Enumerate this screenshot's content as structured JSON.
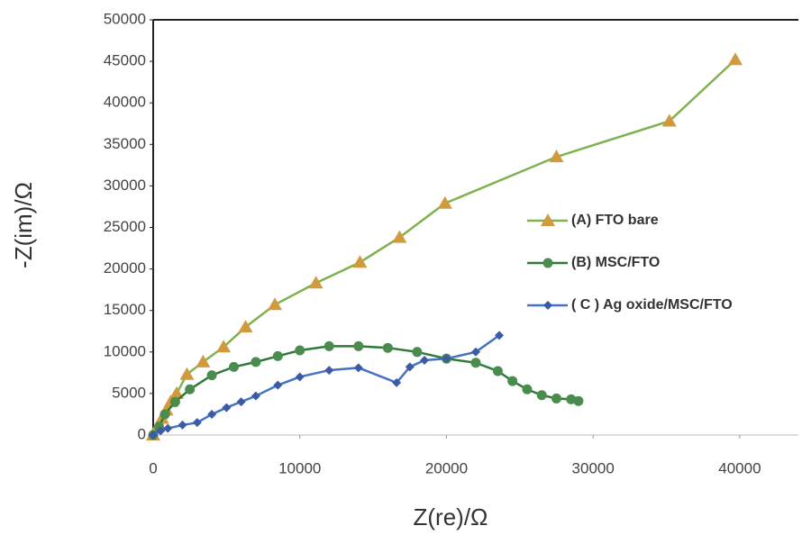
{
  "chart_data": {
    "type": "scatter-line",
    "x_label": "Z(re)/Ω",
    "y_label": "-Z(im)/Ω",
    "xlim": [
      0,
      44000
    ],
    "xticks": [
      0,
      10000,
      20000,
      30000,
      40000
    ],
    "ylim": [
      0,
      50000
    ],
    "yticks": [
      0,
      5000,
      10000,
      15000,
      20000,
      25000,
      30000,
      35000,
      40000,
      45000,
      50000
    ],
    "grid": false,
    "series": [
      {
        "name": "(A) FTO bare",
        "color": "#7fb24f",
        "marker": "triangle",
        "marker_color": "#d19a3e",
        "x": [
          0,
          300,
          600,
          900,
          1200,
          1600,
          2300,
          3400,
          4800,
          6300,
          8300,
          11100,
          14100,
          16800,
          19900,
          27500,
          35200,
          39700
        ],
        "values": [
          0,
          1000,
          2000,
          3000,
          4000,
          5000,
          7300,
          8800,
          10600,
          13000,
          15700,
          18300,
          20800,
          23800,
          27900,
          33500,
          37800,
          45200
        ]
      },
      {
        "name": "(B) MSC/FTO",
        "color": "#2f7a3a",
        "marker": "circle",
        "marker_color": "#4a8c4e",
        "x": [
          0,
          400,
          800,
          1500,
          2500,
          4000,
          5500,
          7000,
          8500,
          10000,
          12000,
          14000,
          16000,
          18000,
          20000,
          22000,
          23500,
          24500,
          25500,
          26500,
          27500,
          28500,
          29000
        ],
        "values": [
          0,
          1000,
          2500,
          4000,
          5500,
          7200,
          8200,
          8800,
          9500,
          10200,
          10700,
          10700,
          10500,
          10000,
          9200,
          8700,
          7700,
          6500,
          5500,
          4800,
          4400,
          4300,
          4100
        ]
      },
      {
        "name": "( C ) Ag oxide/MSC/FTO",
        "color": "#4472c4",
        "marker": "diamond",
        "marker_color": "#3b5ba5",
        "x": [
          0,
          500,
          1000,
          2000,
          3000,
          4000,
          5000,
          6000,
          7000,
          8500,
          10000,
          12000,
          14000,
          16600,
          17500,
          18500,
          20000,
          22000,
          23600
        ],
        "values": [
          0,
          500,
          800,
          1200,
          1500,
          2500,
          3300,
          4000,
          4700,
          6000,
          7000,
          7800,
          8100,
          6300,
          8200,
          9000,
          9200,
          10000,
          12000
        ]
      }
    ]
  }
}
